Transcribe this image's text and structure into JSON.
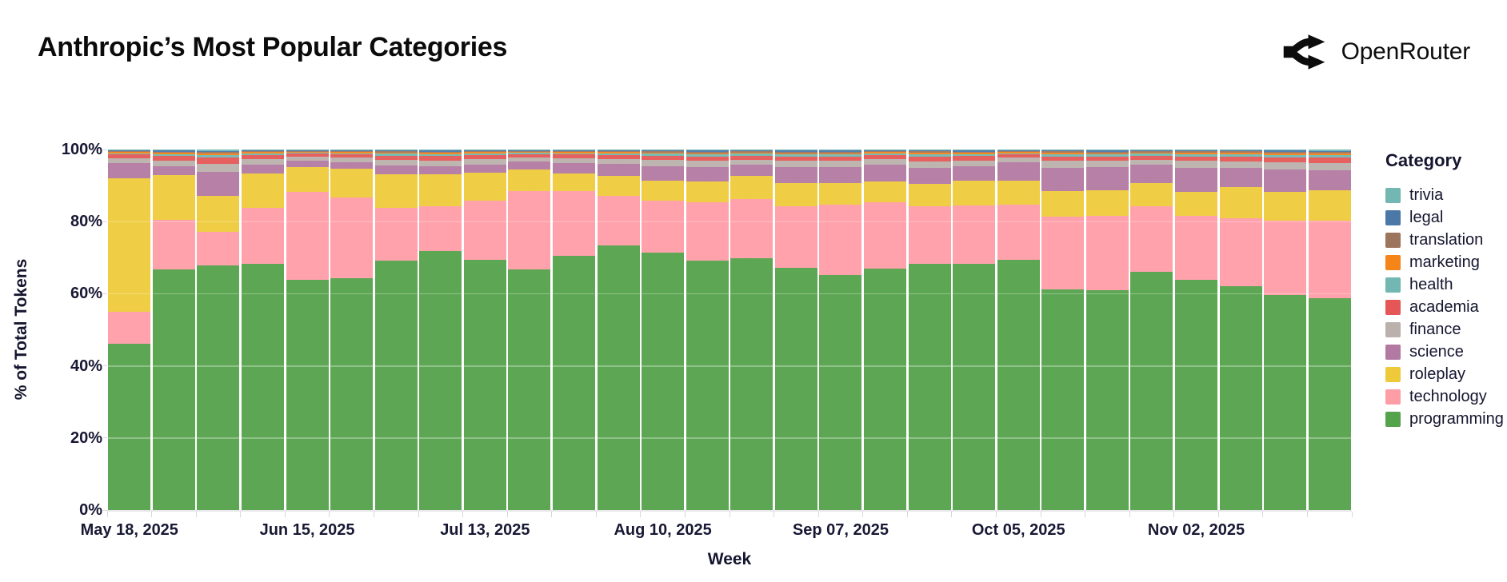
{
  "header": {
    "title": "Anthropic’s Most Popular Categories",
    "logo_text": "OpenRouter"
  },
  "theme": {
    "background": "#ffffff",
    "title_color": "#0b0b0b",
    "axis_text_color": "#181834",
    "tick_mark_color": "#d7d7de"
  },
  "chart_data": {
    "type": "bar",
    "variant": "stacked-percent",
    "title": "Anthropic’s Most Popular Categories",
    "xlabel": "Week",
    "ylabel": "% of Total Tokens",
    "ylim": [
      0,
      100
    ],
    "grid": "faint horizontal lines at 20% steps, faint vertical line per week",
    "legend_position": "right",
    "legend_title": "Category",
    "ytick_labels": [
      "0%",
      "20%",
      "40%",
      "60%",
      "80%",
      "100%"
    ],
    "ytick_values": [
      0,
      20,
      40,
      60,
      80,
      100
    ],
    "x": [
      "May 18, 2025",
      "May 25, 2025",
      "Jun 01, 2025",
      "Jun 08, 2025",
      "Jun 15, 2025",
      "Jun 22, 2025",
      "Jun 29, 2025",
      "Jul 06, 2025",
      "Jul 13, 2025",
      "Jul 20, 2025",
      "Jul 27, 2025",
      "Aug 03, 2025",
      "Aug 10, 2025",
      "Aug 17, 2025",
      "Aug 24, 2025",
      "Aug 31, 2025",
      "Sep 07, 2025",
      "Sep 14, 2025",
      "Sep 21, 2025",
      "Sep 28, 2025",
      "Oct 05, 2025",
      "Oct 12, 2025",
      "Oct 19, 2025",
      "Oct 26, 2025",
      "Nov 02, 2025",
      "Nov 09, 2025",
      "Nov 16, 2025",
      "Nov 23, 2025"
    ],
    "xtick_indices": [
      0,
      4,
      8,
      12,
      16,
      20,
      24
    ],
    "xtick_labels": [
      "May 18, 2025",
      "Jun 15, 2025",
      "Jul 13, 2025",
      "Aug 10, 2025",
      "Sep 07, 2025",
      "Oct 05, 2025",
      "Nov 02, 2025"
    ],
    "legend_order_top_to_bottom": [
      "trivia",
      "legal",
      "translation",
      "marketing",
      "health",
      "academia",
      "finance",
      "science",
      "roleplay",
      "technology",
      "programming"
    ],
    "series": [
      {
        "name": "programming",
        "color": "#54A24B",
        "values": [
          46.1,
          66.7,
          67.8,
          68.2,
          63.9,
          64.2,
          69.2,
          71.9,
          69.5,
          66.7,
          70.6,
          73.4,
          71.3,
          69.1,
          69.8,
          67.1,
          65.1,
          67.0,
          68.2,
          68.4,
          69.5,
          61.2,
          61.0,
          66.0,
          63.9,
          62.1,
          59.7,
          58.8
        ]
      },
      {
        "name": "technology",
        "color": "#FF9DA6",
        "values": [
          9.0,
          13.7,
          9.3,
          15.7,
          24.4,
          22.5,
          14.7,
          12.4,
          16.4,
          21.8,
          17.9,
          13.8,
          14.5,
          16.2,
          16.5,
          17.2,
          19.5,
          18.3,
          16.1,
          16.1,
          15.1,
          20.1,
          20.7,
          18.2,
          17.6,
          18.9,
          20.5,
          21.4
        ]
      },
      {
        "name": "roleplay",
        "color": "#EECA3B",
        "values": [
          37.0,
          12.4,
          10.0,
          9.4,
          6.9,
          7.9,
          9.3,
          8.9,
          7.6,
          5.9,
          4.8,
          5.5,
          5.5,
          5.8,
          6.4,
          6.3,
          6.1,
          5.8,
          6.1,
          6.8,
          6.7,
          7.2,
          7.0,
          6.5,
          6.8,
          8.5,
          8.1,
          8.5
        ]
      },
      {
        "name": "science",
        "color": "#B279A2",
        "values": [
          4.2,
          2.5,
          6.8,
          2.6,
          1.7,
          1.8,
          2.3,
          2.1,
          2.4,
          2.2,
          3.0,
          3.3,
          4.1,
          4.1,
          3.0,
          4.6,
          4.5,
          4.8,
          4.4,
          4.0,
          5.1,
          6.5,
          6.5,
          5.0,
          6.7,
          5.3,
          6.2,
          5.6
        ]
      },
      {
        "name": "finance",
        "color": "#BAB0AC",
        "values": [
          1.3,
          1.7,
          2.2,
          1.5,
          1.1,
          1.3,
          1.6,
          1.7,
          1.5,
          1.2,
          1.3,
          1.4,
          1.7,
          1.7,
          1.5,
          1.7,
          1.7,
          1.5,
          1.9,
          1.7,
          1.3,
          1.8,
          1.7,
          1.5,
          1.8,
          1.9,
          2.0,
          2.0
        ]
      },
      {
        "name": "academia",
        "color": "#E45756",
        "values": [
          1.0,
          1.2,
          1.6,
          1.1,
          0.8,
          0.9,
          1.2,
          1.2,
          1.1,
          0.9,
          1.0,
          1.0,
          1.2,
          1.2,
          1.1,
          1.2,
          1.2,
          1.1,
          1.3,
          1.2,
          0.9,
          1.3,
          1.2,
          1.1,
          1.3,
          1.3,
          1.4,
          1.5
        ]
      },
      {
        "name": "health",
        "color": "#72B7B2",
        "values": [
          0.4,
          0.5,
          0.7,
          0.4,
          0.3,
          0.4,
          0.5,
          0.5,
          0.4,
          0.4,
          0.4,
          0.5,
          0.5,
          0.5,
          0.5,
          0.5,
          0.5,
          0.4,
          0.6,
          0.5,
          0.4,
          0.6,
          0.5,
          0.5,
          0.6,
          0.6,
          0.6,
          0.6
        ]
      },
      {
        "name": "marketing",
        "color": "#F58518",
        "values": [
          0.3,
          0.4,
          0.5,
          0.4,
          0.3,
          0.3,
          0.4,
          0.4,
          0.4,
          0.3,
          0.3,
          0.4,
          0.4,
          0.4,
          0.4,
          0.4,
          0.4,
          0.4,
          0.5,
          0.4,
          0.3,
          0.4,
          0.4,
          0.4,
          0.4,
          0.5,
          0.5,
          0.5
        ]
      },
      {
        "name": "translation",
        "color": "#9D755D",
        "values": [
          0.3,
          0.3,
          0.4,
          0.3,
          0.2,
          0.3,
          0.3,
          0.3,
          0.3,
          0.2,
          0.3,
          0.3,
          0.3,
          0.4,
          0.3,
          0.4,
          0.4,
          0.3,
          0.4,
          0.3,
          0.3,
          0.4,
          0.4,
          0.3,
          0.4,
          0.4,
          0.4,
          0.4
        ]
      },
      {
        "name": "legal",
        "color": "#4C78A8",
        "values": [
          0.2,
          0.3,
          0.3,
          0.2,
          0.2,
          0.2,
          0.2,
          0.3,
          0.2,
          0.2,
          0.2,
          0.2,
          0.2,
          0.3,
          0.2,
          0.3,
          0.3,
          0.2,
          0.2,
          0.3,
          0.2,
          0.2,
          0.3,
          0.2,
          0.2,
          0.2,
          0.3,
          0.3
        ]
      },
      {
        "name": "trivia",
        "color": "#72B7B2",
        "values": [
          0.2,
          0.3,
          0.4,
          0.2,
          0.2,
          0.2,
          0.3,
          0.3,
          0.2,
          0.2,
          0.2,
          0.2,
          0.3,
          0.3,
          0.3,
          0.3,
          0.3,
          0.2,
          0.3,
          0.3,
          0.2,
          0.3,
          0.3,
          0.3,
          0.3,
          0.3,
          0.3,
          0.4
        ]
      }
    ]
  }
}
